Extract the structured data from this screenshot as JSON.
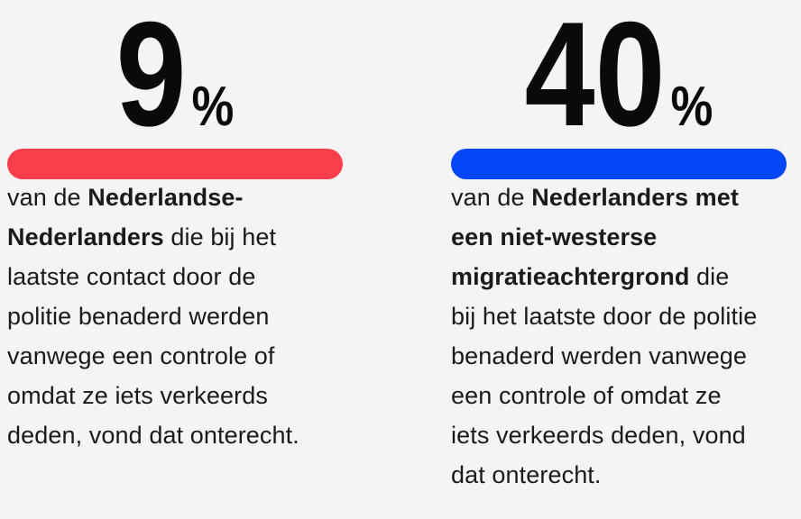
{
  "page": {
    "background_color": "#f4f4f4",
    "text_color": "#1a1a1a"
  },
  "chart_data": {
    "type": "bar",
    "categories": [
      "Nederlandse-Nederlanders",
      "Nederlanders met een niet-westerse migratieachtergrond"
    ],
    "values": [
      9,
      40
    ],
    "value_unit": "%",
    "bar_colors": [
      "#fa3e4b",
      "#0546fa"
    ],
    "legend_position": "none",
    "grid": false,
    "notes": "infographic stat cards; bars are decorative full-width rules under each percentage"
  },
  "stats": [
    {
      "value": "9",
      "percent_sign": "%",
      "bar_color": "#fa3e4b",
      "text_prefix": "van de ",
      "group_bold": "Nederlandse-\nNederlanders",
      "text_suffix": " die bij het\nlaatste contact door de\npolitie benaderd werden\nvanwege een controle of\nomdat ze iets verkeerds\ndeden, vond dat onterecht."
    },
    {
      "value": "40",
      "percent_sign": "%",
      "bar_color": "#0546fa",
      "text_prefix": "van de ",
      "group_bold": "Nederlanders met\neen niet-westerse\nmigratieachtergrond",
      "text_suffix": " die\nbij het laatste door de politie\nbenaderd werden vanwege\neen controle of omdat ze\niets verkeerds deden, vond\ndat onterecht."
    }
  ]
}
